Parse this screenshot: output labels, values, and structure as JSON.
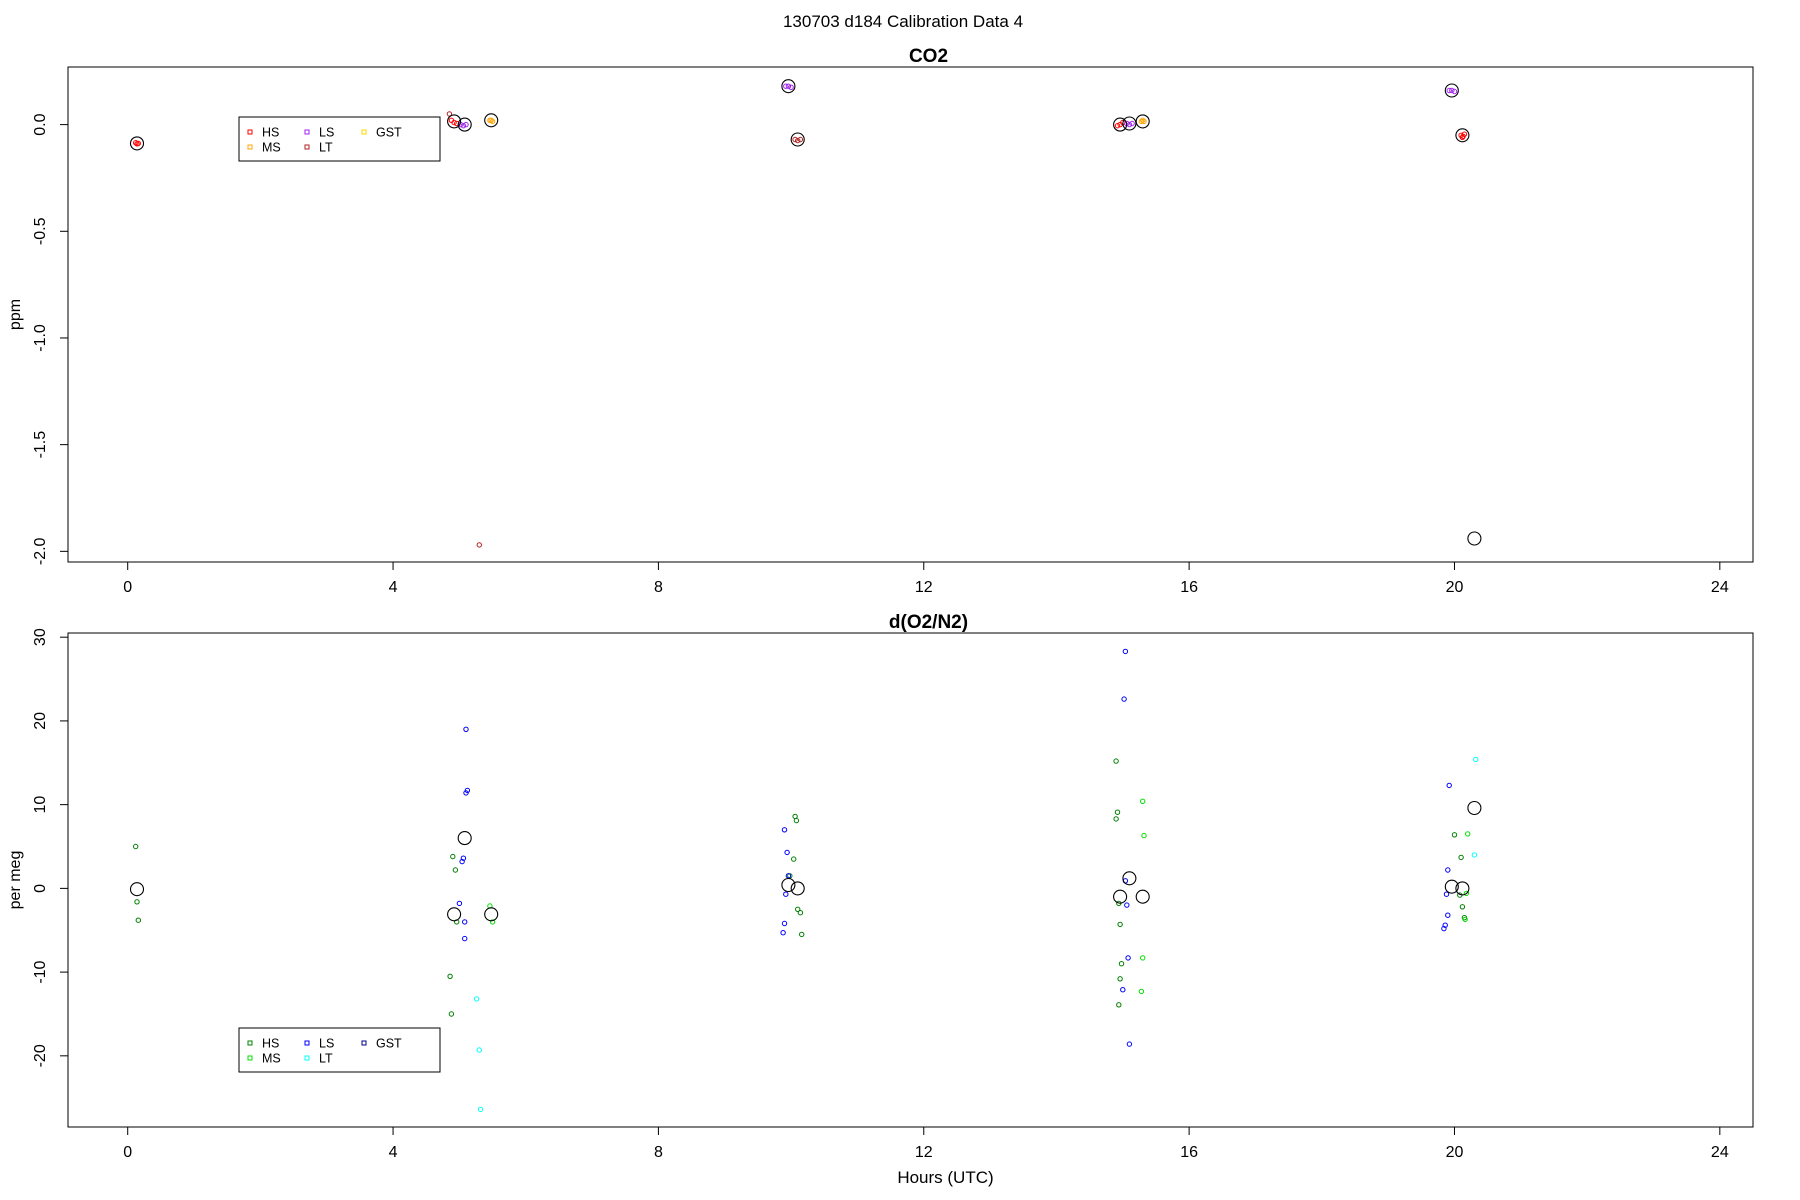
{
  "figure": {
    "title": "130703   d184   Calibration Data 4"
  },
  "chart_data": [
    {
      "type": "scatter",
      "title": "CO2",
      "xlabel": "",
      "ylabel": "ppm",
      "xlim": [
        -0.9,
        24.5
      ],
      "ylim": [
        -2.05,
        0.27
      ],
      "xticks": [
        "0",
        "4",
        "8",
        "12",
        "16",
        "20",
        "24"
      ],
      "xtick_values": [
        0,
        4,
        8,
        12,
        16,
        20,
        24
      ],
      "yticks": [
        "0.0",
        "-0.5",
        "-1.0",
        "-1.5",
        "-2.0"
      ],
      "ytick_values": [
        0,
        -0.5,
        -1.0,
        -1.5,
        -2.0
      ],
      "grid": false,
      "legend_placement": "top-left",
      "legend": [
        {
          "label": "HS",
          "color": "#ff0000"
        },
        {
          "label": "MS",
          "color": "#ffa500"
        },
        {
          "label": "LS",
          "color": "#a020f0"
        },
        {
          "label": "LT",
          "color": "#b22222"
        },
        {
          "label": "GST",
          "color": "#ffd700"
        }
      ],
      "series": [
        {
          "color": "#ff0000",
          "points": [
            [
              0.12,
              -0.085
            ],
            [
              0.14,
              -0.09
            ],
            [
              0.16,
              -0.088
            ],
            [
              4.88,
              0.02
            ],
            [
              4.92,
              0.01
            ],
            [
              4.96,
              0.005
            ],
            [
              14.92,
              -0.005
            ],
            [
              14.96,
              0.0
            ],
            [
              15.0,
              0.01
            ],
            [
              20.1,
              -0.05
            ],
            [
              20.12,
              -0.06
            ],
            [
              20.15,
              -0.045
            ],
            [
              20.13,
              -0.055
            ]
          ]
        },
        {
          "color": "#ffa500",
          "points": [
            [
              5.46,
              0.02
            ],
            [
              5.5,
              0.015
            ],
            [
              5.48,
              0.02
            ],
            [
              15.28,
              0.015
            ],
            [
              15.3,
              0.02
            ],
            [
              15.32,
              0.015
            ]
          ]
        },
        {
          "color": "#a020f0",
          "points": [
            [
              5.02,
              0.0
            ],
            [
              5.06,
              -0.005
            ],
            [
              5.1,
              0.0
            ],
            [
              9.92,
              0.18
            ],
            [
              9.96,
              0.18
            ],
            [
              10.0,
              0.175
            ],
            [
              15.06,
              0.005
            ],
            [
              15.1,
              0.0
            ],
            [
              15.14,
              0.005
            ],
            [
              19.92,
              0.16
            ],
            [
              19.96,
              0.16
            ],
            [
              20.0,
              0.155
            ]
          ]
        },
        {
          "color": "#b22222",
          "points": [
            [
              4.85,
              0.05
            ],
            [
              10.06,
              -0.07
            ],
            [
              10.1,
              -0.075
            ],
            [
              10.14,
              -0.07
            ],
            [
              5.3,
              -1.97
            ]
          ]
        },
        {
          "color": "#000000",
          "size": "large",
          "points": [
            [
              0.14,
              -0.088
            ],
            [
              4.92,
              0.015
            ],
            [
              5.08,
              0.0
            ],
            [
              5.48,
              0.02
            ],
            [
              9.96,
              0.18
            ],
            [
              10.1,
              -0.07
            ],
            [
              14.96,
              0.0
            ],
            [
              15.1,
              0.005
            ],
            [
              15.3,
              0.015
            ],
            [
              19.96,
              0.16
            ],
            [
              20.12,
              -0.05
            ],
            [
              20.3,
              -1.94
            ]
          ]
        }
      ]
    },
    {
      "type": "scatter",
      "title": "d(O2/N2)",
      "xlabel": "Hours (UTC)",
      "ylabel": "per meg",
      "xlim": [
        -0.9,
        24.5
      ],
      "ylim": [
        -28.5,
        30.5
      ],
      "xticks": [
        "0",
        "4",
        "8",
        "12",
        "16",
        "20",
        "24"
      ],
      "xtick_values": [
        0,
        4,
        8,
        12,
        16,
        20,
        24
      ],
      "yticks": [
        "30",
        "20",
        "10",
        "0",
        "-10",
        "-20"
      ],
      "ytick_values": [
        30,
        20,
        10,
        0,
        -10,
        -20
      ],
      "grid": false,
      "legend_placement": "bottom-left",
      "legend": [
        {
          "label": "HS",
          "color": "#008000"
        },
        {
          "label": "MS",
          "color": "#00e000"
        },
        {
          "label": "LS",
          "color": "#0000ff"
        },
        {
          "label": "LT",
          "color": "#00ffff"
        },
        {
          "label": "GST",
          "color": "#00008b"
        }
      ],
      "series": [
        {
          "color": "#008000",
          "points": [
            [
              0.12,
              5.0
            ],
            [
              0.14,
              -1.6
            ],
            [
              0.16,
              -3.8
            ],
            [
              4.86,
              -10.5
            ],
            [
              4.88,
              -15.0
            ],
            [
              4.9,
              3.8
            ],
            [
              4.94,
              2.2
            ],
            [
              4.96,
              -4.0
            ],
            [
              10.04,
              3.5
            ],
            [
              10.06,
              8.6
            ],
            [
              10.08,
              8.1
            ],
            [
              10.1,
              -2.5
            ],
            [
              10.14,
              -2.9
            ],
            [
              10.16,
              -5.5
            ],
            [
              9.98,
              1.5
            ],
            [
              14.9,
              15.2
            ],
            [
              14.92,
              9.1
            ],
            [
              14.9,
              8.3
            ],
            [
              14.94,
              -1.8
            ],
            [
              14.96,
              -4.3
            ],
            [
              14.98,
              -9.0
            ],
            [
              14.96,
              -10.8
            ],
            [
              14.94,
              -13.9
            ],
            [
              20.0,
              6.4
            ],
            [
              20.1,
              3.7
            ],
            [
              20.12,
              -2.2
            ],
            [
              20.15,
              -3.5
            ],
            [
              20.08,
              -0.8
            ]
          ]
        },
        {
          "color": "#00e000",
          "points": [
            [
              5.46,
              -2.1
            ],
            [
              5.5,
              -4.0
            ],
            [
              15.3,
              10.4
            ],
            [
              15.32,
              6.3
            ],
            [
              15.3,
              -8.3
            ],
            [
              15.28,
              -12.3
            ],
            [
              20.2,
              6.5
            ],
            [
              20.18,
              -0.6
            ],
            [
              20.16,
              -3.7
            ]
          ]
        },
        {
          "color": "#0000ff",
          "points": [
            [
              5.0,
              -1.8
            ],
            [
              5.04,
              3.2
            ],
            [
              5.06,
              3.6
            ],
            [
              5.1,
              11.4
            ],
            [
              5.12,
              11.7
            ],
            [
              5.1,
              19.0
            ],
            [
              5.08,
              -4.0
            ],
            [
              5.08,
              -6.0
            ],
            [
              9.9,
              7.0
            ],
            [
              9.94,
              4.3
            ],
            [
              9.96,
              1.5
            ],
            [
              9.92,
              -0.7
            ],
            [
              9.9,
              -4.2
            ],
            [
              9.88,
              -5.3
            ],
            [
              15.04,
              28.3
            ],
            [
              15.02,
              22.6
            ],
            [
              15.04,
              0.9
            ],
            [
              15.06,
              -2.0
            ],
            [
              15.08,
              -8.3
            ],
            [
              15.0,
              -12.1
            ],
            [
              15.1,
              -18.6
            ],
            [
              19.92,
              12.3
            ],
            [
              19.9,
              2.2
            ],
            [
              19.88,
              -0.7
            ],
            [
              19.9,
              -3.2
            ],
            [
              19.86,
              -4.4
            ],
            [
              19.84,
              -4.8
            ]
          ]
        },
        {
          "color": "#00ffff",
          "points": [
            [
              5.26,
              -13.2
            ],
            [
              5.3,
              -19.3
            ],
            [
              5.32,
              -26.4
            ],
            [
              20.32,
              15.4
            ],
            [
              20.3,
              4.0
            ]
          ]
        },
        {
          "color": "#000000",
          "size": "large",
          "points": [
            [
              0.14,
              -0.1
            ],
            [
              4.92,
              -3.1
            ],
            [
              5.08,
              6.0
            ],
            [
              5.48,
              -3.1
            ],
            [
              9.96,
              0.4
            ],
            [
              10.1,
              0.0
            ],
            [
              14.96,
              -1.0
            ],
            [
              15.1,
              1.2
            ],
            [
              15.3,
              -1.0
            ],
            [
              19.96,
              0.2
            ],
            [
              20.12,
              0.0
            ],
            [
              20.3,
              9.6
            ]
          ]
        },
        {
          "color": "#00008b",
          "points": []
        }
      ]
    }
  ]
}
